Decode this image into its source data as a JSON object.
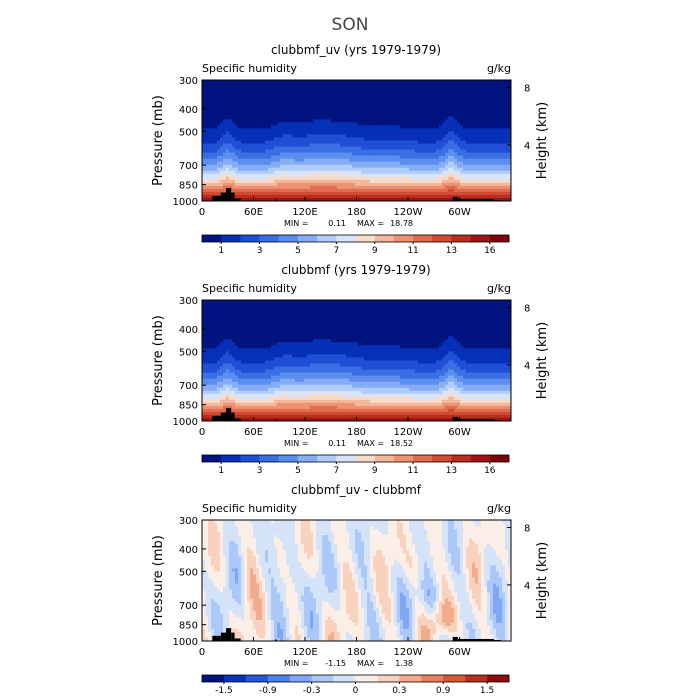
{
  "figure_title": "SON",
  "chart_data": [
    {
      "type": "heatmap",
      "title": "clubbmf_uv (yrs 1979-1979)",
      "subtitle_left": "Specific humidity",
      "units": "g/kg",
      "ylabel": "Pressure (mb)",
      "ylabel_right": "Height (km)",
      "x_ticks": [
        "0",
        "60E",
        "120E",
        "180",
        "120W",
        "60W"
      ],
      "x_tick_lon": [
        0,
        60,
        120,
        180,
        240,
        300
      ],
      "xlim": [
        0,
        360
      ],
      "y_ticks": [
        "300",
        "400",
        "500",
        "700",
        "850",
        "1000"
      ],
      "y_tick_values": [
        300,
        400,
        500,
        700,
        850,
        1000
      ],
      "ylim": [
        1000,
        300
      ],
      "right_ticks": [
        "8",
        "4"
      ],
      "right_tick_km": [
        8,
        4
      ],
      "min_text": "MIN = ",
      "min_value": "0.11",
      "max_text": "MAX = ",
      "max_value": "18.78",
      "colorbar_labels": [
        "1",
        "3",
        "5",
        "7",
        "9",
        "11",
        "13",
        "16"
      ],
      "colorbar_colors": [
        "#00137e",
        "#0630b8",
        "#1e4fd6",
        "#3a6fe4",
        "#5c8ef0",
        "#85adf5",
        "#b0ccf8",
        "#d7e4f8",
        "#f8dccb",
        "#f3b89c",
        "#ec9371",
        "#e16c4f",
        "#d14a32",
        "#bb2d1f",
        "#9e1414",
        "#7b0406"
      ],
      "field": "q"
    },
    {
      "type": "heatmap",
      "title": "clubbmf (yrs 1979-1979)",
      "subtitle_left": "Specific humidity",
      "units": "g/kg",
      "ylabel": "Pressure (mb)",
      "ylabel_right": "Height (km)",
      "x_ticks": [
        "0",
        "60E",
        "120E",
        "180",
        "120W",
        "60W"
      ],
      "x_tick_lon": [
        0,
        60,
        120,
        180,
        240,
        300
      ],
      "xlim": [
        0,
        360
      ],
      "y_ticks": [
        "300",
        "400",
        "500",
        "700",
        "850",
        "1000"
      ],
      "y_tick_values": [
        300,
        400,
        500,
        700,
        850,
        1000
      ],
      "ylim": [
        1000,
        300
      ],
      "right_ticks": [
        "8",
        "4"
      ],
      "right_tick_km": [
        8,
        4
      ],
      "min_text": "MIN = ",
      "min_value": "0.11",
      "max_text": "MAX = ",
      "max_value": "18.52",
      "colorbar_labels": [
        "1",
        "3",
        "5",
        "7",
        "9",
        "11",
        "13",
        "16"
      ],
      "colorbar_colors": [
        "#00137e",
        "#0630b8",
        "#1e4fd6",
        "#3a6fe4",
        "#5c8ef0",
        "#85adf5",
        "#b0ccf8",
        "#d7e4f8",
        "#f8dccb",
        "#f3b89c",
        "#ec9371",
        "#e16c4f",
        "#d14a32",
        "#bb2d1f",
        "#9e1414",
        "#7b0406"
      ],
      "field": "q"
    },
    {
      "type": "heatmap",
      "title": "clubbmf_uv - clubbmf",
      "subtitle_left": "Specific humidity",
      "units": "g/kg",
      "ylabel": "Pressure (mb)",
      "ylabel_right": "Height (km)",
      "x_ticks": [
        "0",
        "60E",
        "120E",
        "180",
        "120W",
        "60W"
      ],
      "x_tick_lon": [
        0,
        60,
        120,
        180,
        240,
        300
      ],
      "xlim": [
        0,
        360
      ],
      "y_ticks": [
        "300",
        "400",
        "500",
        "700",
        "850",
        "1000"
      ],
      "y_tick_values": [
        300,
        400,
        500,
        700,
        850,
        1000
      ],
      "ylim": [
        1000,
        300
      ],
      "right_ticks": [
        "8",
        "4"
      ],
      "right_tick_km": [
        8,
        4
      ],
      "min_text": "MIN = ",
      "min_value": "-1.15",
      "max_text": "MAX = ",
      "max_value": "1.38",
      "colorbar_labels": [
        "-1.5",
        "-0.9",
        "-0.3",
        "0",
        "0.3",
        "0.9",
        "1.5"
      ],
      "colorbar_colors": [
        "#00137e",
        "#0b34bd",
        "#2657d9",
        "#4f81ec",
        "#7fa7f4",
        "#acc8f8",
        "#d5e3f9",
        "#fbeee6",
        "#f8d2bd",
        "#f1ac8d",
        "#e6825f",
        "#d45a3a",
        "#b8301f",
        "#8a0b0a"
      ],
      "field": "diff"
    }
  ]
}
